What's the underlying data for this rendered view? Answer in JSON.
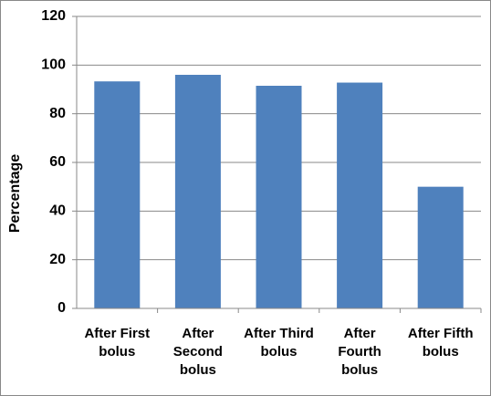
{
  "chart_data": {
    "type": "bar",
    "y_label": "Percentage",
    "categories": [
      "After First bolus",
      "After Second bolus",
      "After Third bolus",
      "After Fourth bolus",
      "After Fifth bolus"
    ],
    "values": [
      93.3,
      96,
      91.5,
      92.8,
      50
    ],
    "color": "#4f81bd",
    "ylim": [
      0,
      120
    ],
    "yticks": [
      0,
      20,
      40,
      60,
      80,
      100,
      120
    ],
    "grid": true
  }
}
